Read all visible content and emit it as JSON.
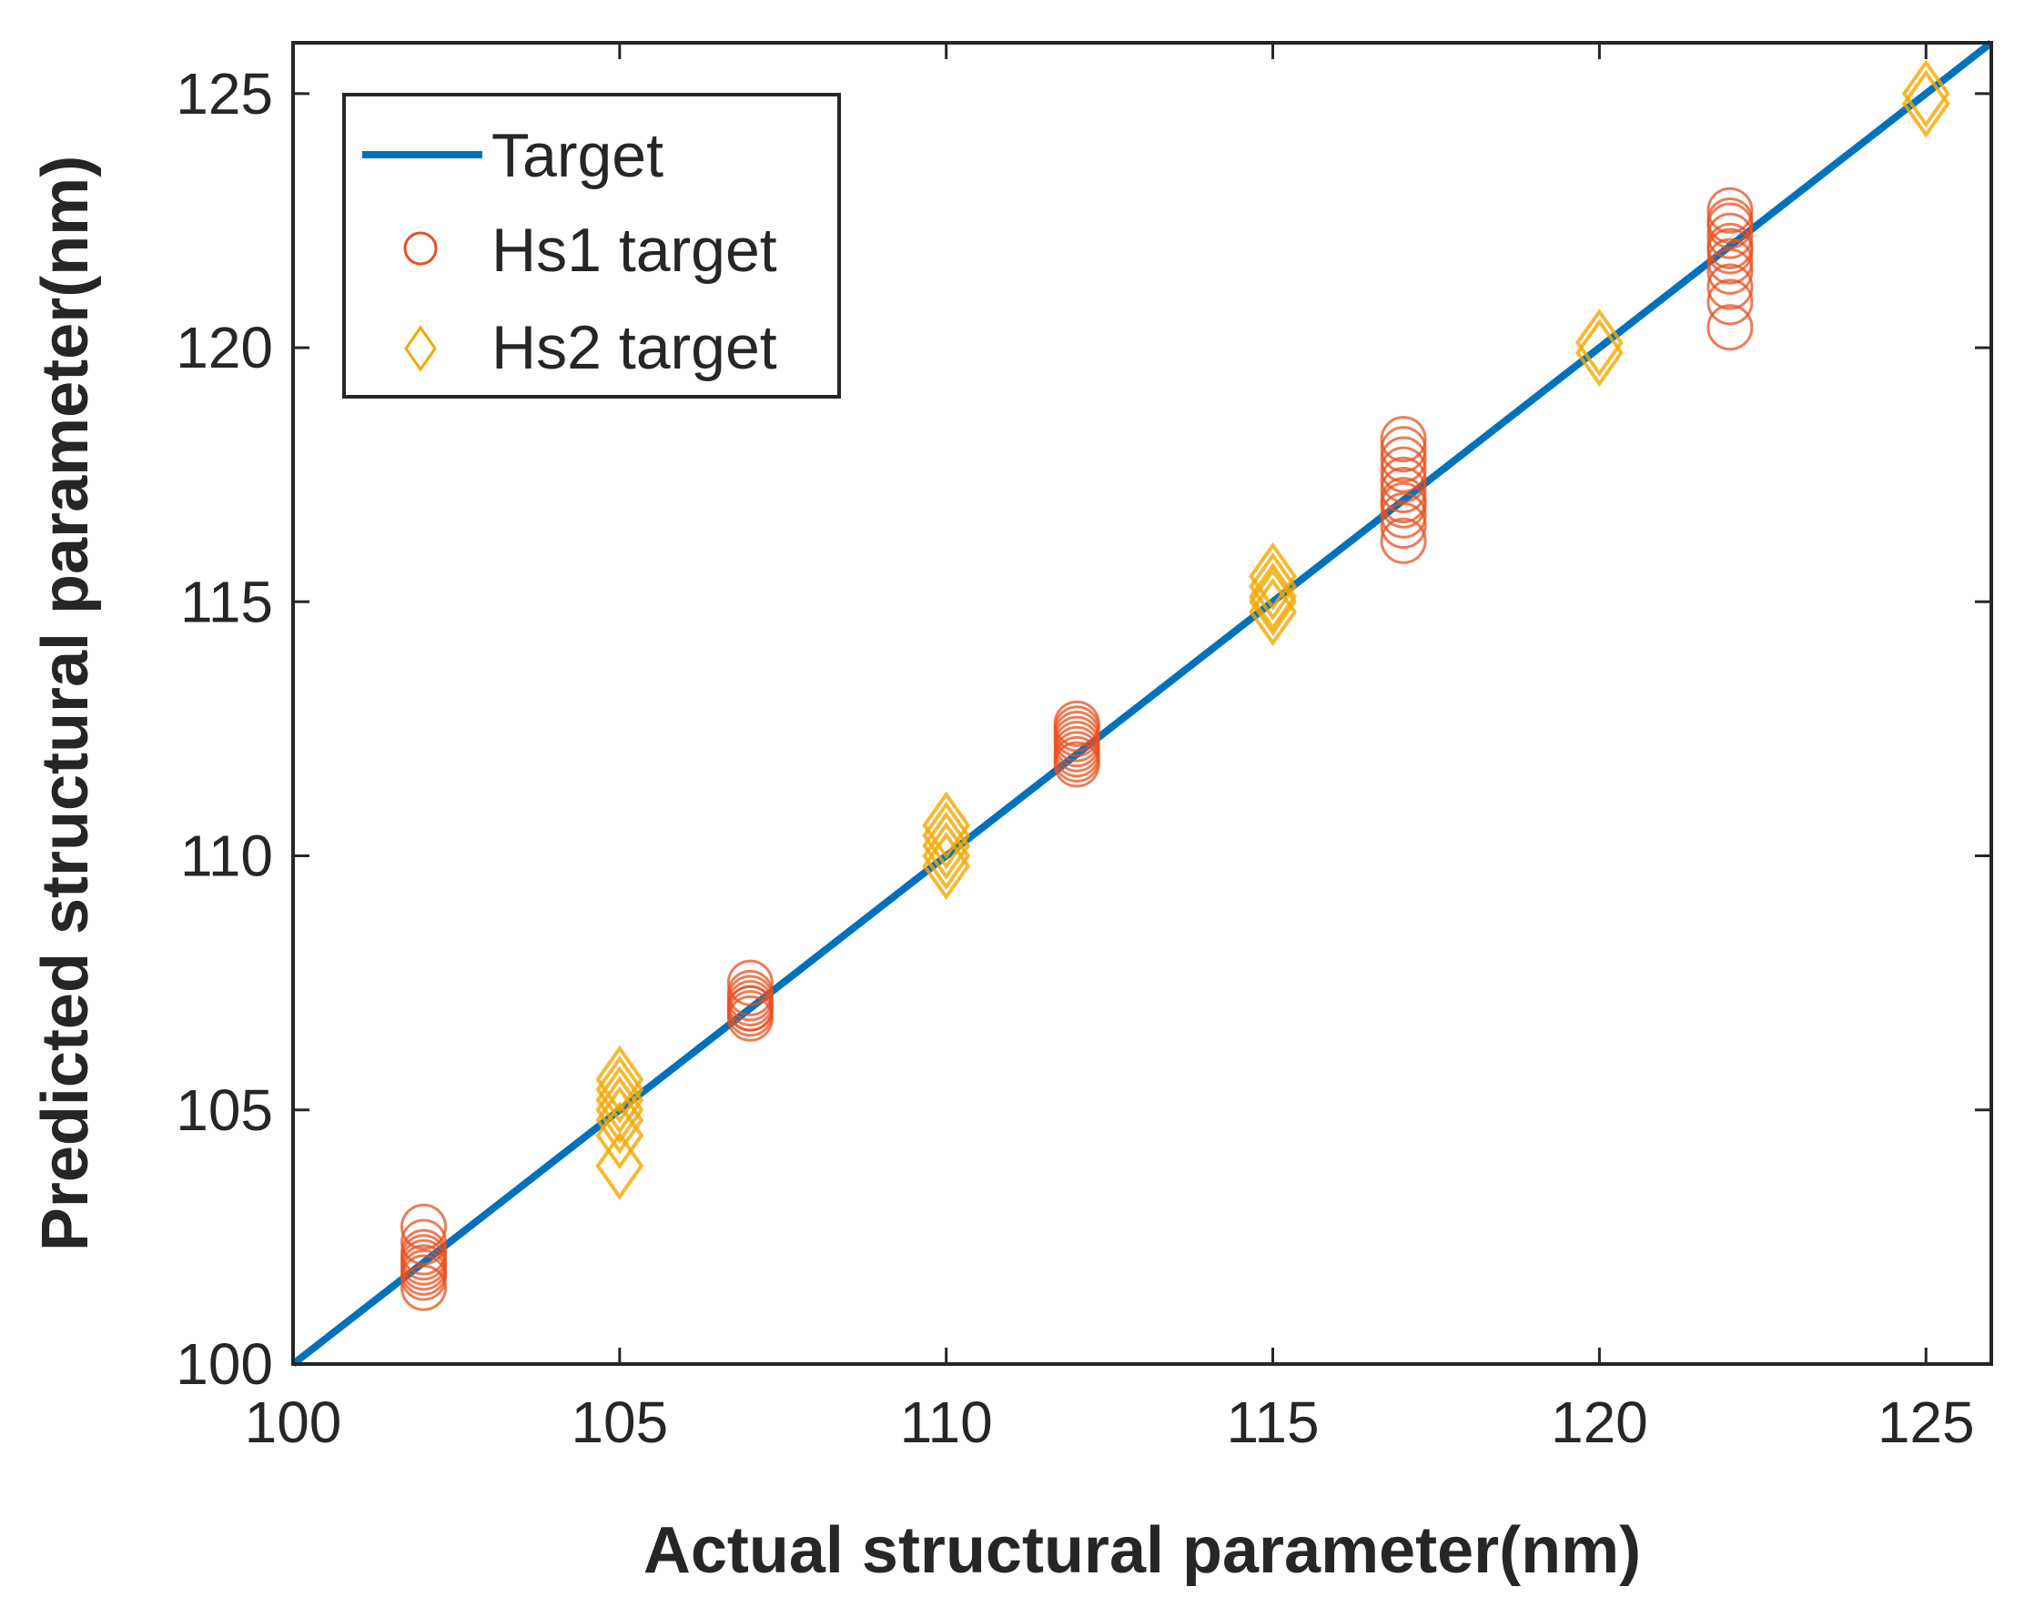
{
  "chart_data": {
    "type": "scatter",
    "xlabel": "Actual structural parameter(nm)",
    "ylabel": "Predicted structural parameter(nm)",
    "xlim": [
      100,
      126
    ],
    "ylim": [
      100,
      126
    ],
    "xticks": [
      100,
      105,
      110,
      115,
      120,
      125
    ],
    "yticks": [
      100,
      105,
      110,
      115,
      120,
      125
    ],
    "xtick_labels": [
      "100",
      "105",
      "110",
      "115",
      "120",
      "125"
    ],
    "ytick_labels": [
      "100",
      "105",
      "110",
      "115",
      "120",
      "125"
    ],
    "grid": false,
    "legend_position": "top-left",
    "colors": {
      "target": "#0072BD",
      "hs1": "#E8501F",
      "hs2": "#F5A800",
      "axis": "#262626"
    },
    "series": [
      {
        "name": "Target",
        "kind": "line",
        "x": [
          100,
          126
        ],
        "y": [
          100,
          126
        ]
      },
      {
        "name": "Hs1 target",
        "kind": "circle",
        "x": [
          102,
          102,
          102,
          102,
          102,
          102,
          102,
          102,
          102,
          107,
          107,
          107,
          107,
          107,
          107,
          107,
          107,
          112,
          112,
          112,
          112,
          112,
          112,
          112,
          112,
          112,
          117,
          117,
          117,
          117,
          117,
          117,
          117,
          117,
          117,
          117,
          117,
          122,
          122,
          122,
          122,
          122,
          122,
          122,
          122,
          122,
          122,
          122
        ],
        "y": [
          101.5,
          101.7,
          101.8,
          101.9,
          102.0,
          102.1,
          102.2,
          102.4,
          102.7,
          106.8,
          106.9,
          107.0,
          107.0,
          107.1,
          107.2,
          107.3,
          107.5,
          111.8,
          111.9,
          112.0,
          112.1,
          112.2,
          112.3,
          112.4,
          112.5,
          112.6,
          116.2,
          116.5,
          116.7,
          116.9,
          117.0,
          117.2,
          117.4,
          117.6,
          117.8,
          118.0,
          118.2,
          120.4,
          120.9,
          121.2,
          121.5,
          121.7,
          121.9,
          122.0,
          122.2,
          122.4,
          122.5,
          122.7
        ]
      },
      {
        "name": "Hs2 target",
        "kind": "diamond",
        "x": [
          105,
          105,
          105,
          105,
          105,
          105,
          105,
          110,
          110,
          110,
          110,
          110,
          115,
          115,
          115,
          115,
          115,
          120,
          120,
          125,
          125
        ],
        "y": [
          103.9,
          104.5,
          104.8,
          105.0,
          105.2,
          105.4,
          105.6,
          109.8,
          110.0,
          110.2,
          110.4,
          110.6,
          114.8,
          115.0,
          115.1,
          115.3,
          115.5,
          119.9,
          120.1,
          124.8,
          125.0
        ]
      }
    ]
  }
}
